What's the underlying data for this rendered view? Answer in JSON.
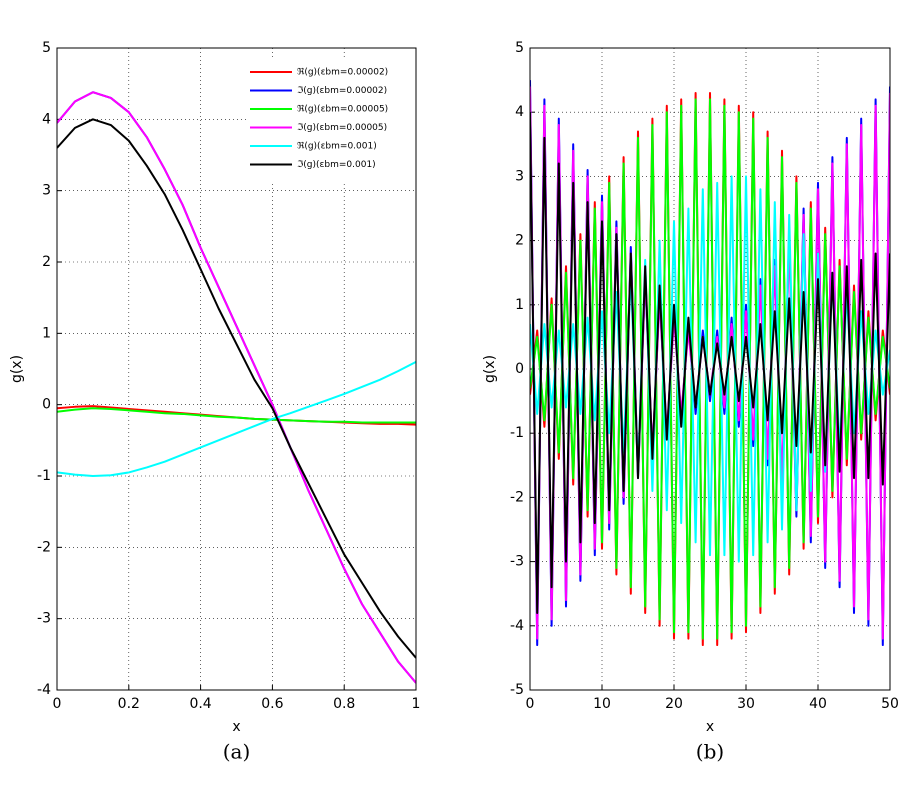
{
  "chart_data": [
    {
      "type": "line",
      "caption": "(a)",
      "x_label": "x",
      "y_label": "g(x)",
      "x": [
        0,
        0.05,
        0.1,
        0.15,
        0.2,
        0.25,
        0.3,
        0.35,
        0.4,
        0.45,
        0.5,
        0.55,
        0.6,
        0.65,
        0.7,
        0.75,
        0.8,
        0.85,
        0.9,
        0.95,
        1
      ],
      "xlim": [
        0,
        1
      ],
      "xticks": [
        0,
        0.2,
        0.4,
        0.6,
        0.8,
        1
      ],
      "ylim": [
        -4,
        5
      ],
      "yticks": [
        -4,
        -3,
        -2,
        -1,
        0,
        1,
        2,
        3,
        4,
        5
      ],
      "grid": true,
      "legend": "upper right",
      "series": [
        {
          "name": "ℜ(g)(εbm=0.00002)",
          "color": "#ff0000",
          "values": [
            -0.05,
            -0.03,
            -0.02,
            -0.04,
            -0.06,
            -0.08,
            -0.1,
            -0.12,
            -0.14,
            -0.16,
            -0.18,
            -0.2,
            -0.21,
            -0.22,
            -0.23,
            -0.24,
            -0.25,
            -0.26,
            -0.27,
            -0.27,
            -0.28
          ]
        },
        {
          "name": "ℑ(g)(εbm=0.00002)",
          "color": "#0000ff",
          "values": [
            3.95,
            4.25,
            4.38,
            4.3,
            4.1,
            3.75,
            3.3,
            2.8,
            2.2,
            1.65,
            1.1,
            0.55,
            0.0,
            -0.6,
            -1.2,
            -1.75,
            -2.3,
            -2.8,
            -3.2,
            -3.6,
            -3.9
          ]
        },
        {
          "name": "ℜ(g)(εbm=0.00005)",
          "color": "#00ff00",
          "values": [
            -0.1,
            -0.07,
            -0.05,
            -0.06,
            -0.08,
            -0.1,
            -0.12,
            -0.13,
            -0.15,
            -0.17,
            -0.18,
            -0.2,
            -0.21,
            -0.22,
            -0.23,
            -0.24,
            -0.24,
            -0.25,
            -0.25,
            -0.25,
            -0.25
          ]
        },
        {
          "name": "ℑ(g)(εbm=0.00005)",
          "color": "#ff00ff",
          "values": [
            3.95,
            4.25,
            4.38,
            4.3,
            4.1,
            3.75,
            3.3,
            2.8,
            2.2,
            1.65,
            1.1,
            0.55,
            0.0,
            -0.6,
            -1.2,
            -1.75,
            -2.3,
            -2.8,
            -3.2,
            -3.6,
            -3.9
          ]
        },
        {
          "name": "ℜ(g)(εbm=0.001)",
          "color": "#00ffff",
          "values": [
            -0.95,
            -0.98,
            -1.0,
            -0.99,
            -0.95,
            -0.88,
            -0.8,
            -0.7,
            -0.6,
            -0.5,
            -0.4,
            -0.3,
            -0.2,
            -0.12,
            -0.03,
            0.06,
            0.15,
            0.25,
            0.35,
            0.47,
            0.6
          ]
        },
        {
          "name": "ℑ(g)(εbm=0.001)",
          "color": "#000000",
          "values": [
            3.6,
            3.88,
            4.0,
            3.92,
            3.7,
            3.35,
            2.95,
            2.45,
            1.9,
            1.35,
            0.85,
            0.35,
            -0.05,
            -0.6,
            -1.1,
            -1.6,
            -2.1,
            -2.5,
            -2.9,
            -3.25,
            -3.55
          ]
        }
      ]
    },
    {
      "type": "line",
      "caption": "(b)",
      "x_label": "x",
      "y_label": "g(x)",
      "x": [
        0,
        1,
        2,
        3,
        4,
        5,
        6,
        7,
        8,
        9,
        10,
        11,
        12,
        13,
        14,
        15,
        16,
        17,
        18,
        19,
        20,
        21,
        22,
        23,
        24,
        25,
        26,
        27,
        28,
        29,
        30,
        31,
        32,
        33,
        34,
        35,
        36,
        37,
        38,
        39,
        40,
        41,
        42,
        43,
        44,
        45,
        46,
        47,
        48,
        49,
        50
      ],
      "xlim": [
        0,
        50
      ],
      "xticks": [
        0,
        10,
        20,
        30,
        40,
        50
      ],
      "ylim": [
        -5,
        5
      ],
      "yticks": [
        -5,
        -4,
        -3,
        -2,
        -1,
        0,
        1,
        2,
        3,
        4,
        5
      ],
      "grid": true,
      "series": [
        {
          "color": "#ff0000",
          "values": [
            -0.4,
            0.6,
            -0.9,
            1.1,
            -1.4,
            1.6,
            -1.8,
            2.1,
            -2.3,
            2.6,
            -2.8,
            3.0,
            -3.2,
            3.3,
            -3.5,
            3.7,
            -3.8,
            3.9,
            -4.0,
            4.1,
            -4.2,
            4.2,
            -4.2,
            4.3,
            -4.3,
            4.3,
            -4.3,
            4.2,
            -4.2,
            4.1,
            -4.1,
            4.0,
            -3.8,
            3.7,
            -3.5,
            3.4,
            -3.2,
            3.0,
            -2.8,
            2.6,
            -2.4,
            2.2,
            -2.0,
            1.7,
            -1.5,
            1.3,
            -1.1,
            0.9,
            -0.8,
            0.6,
            -0.4
          ]
        },
        {
          "color": "#0000ff",
          "values": [
            4.5,
            -4.3,
            4.2,
            -4.0,
            3.9,
            -3.7,
            3.5,
            -3.3,
            3.1,
            -2.9,
            2.7,
            -2.5,
            2.3,
            -2.1,
            1.9,
            -1.7,
            1.5,
            -1.4,
            1.2,
            -1.1,
            0.9,
            -0.8,
            0.7,
            -0.7,
            0.6,
            -0.5,
            0.6,
            -0.7,
            0.8,
            -0.9,
            1.0,
            -1.2,
            1.4,
            -1.5,
            1.7,
            -1.9,
            2.1,
            -2.3,
            2.5,
            -2.7,
            2.9,
            -3.1,
            3.3,
            -3.4,
            3.6,
            -3.8,
            3.9,
            -4.0,
            4.2,
            -4.3,
            4.4
          ]
        },
        {
          "color": "#00ff00",
          "values": [
            -0.3,
            0.5,
            -0.8,
            1.0,
            -1.3,
            1.5,
            -1.7,
            2.0,
            -2.2,
            2.5,
            -2.7,
            2.9,
            -3.1,
            3.2,
            -3.4,
            3.6,
            -3.7,
            3.8,
            -3.9,
            4.0,
            -4.1,
            4.1,
            -4.1,
            4.2,
            -4.2,
            4.2,
            -4.2,
            4.1,
            -4.1,
            4.0,
            -4.0,
            3.9,
            -3.7,
            3.6,
            -3.4,
            3.3,
            -3.1,
            2.9,
            -2.7,
            2.5,
            -2.3,
            2.1,
            -1.9,
            1.6,
            -1.4,
            1.2,
            -1.0,
            0.8,
            -0.7,
            0.5,
            -0.3
          ]
        },
        {
          "color": "#ff00ff",
          "values": [
            4.4,
            -4.2,
            4.1,
            -3.9,
            3.8,
            -3.6,
            3.4,
            -3.2,
            3.0,
            -2.8,
            2.6,
            -2.4,
            2.2,
            -2.0,
            1.8,
            -1.6,
            1.4,
            -1.3,
            1.1,
            -1.0,
            0.8,
            -0.7,
            0.6,
            -0.6,
            0.5,
            -0.4,
            0.5,
            -0.6,
            0.7,
            -0.8,
            0.9,
            -1.1,
            1.3,
            -1.4,
            1.6,
            -1.8,
            2.0,
            -2.2,
            2.4,
            -2.6,
            2.8,
            -3.0,
            3.2,
            -3.3,
            3.5,
            -3.7,
            3.8,
            -3.9,
            4.1,
            -4.2,
            4.3
          ]
        },
        {
          "color": "#00ffff",
          "values": [
            0.7,
            -0.7,
            0.7,
            -0.6,
            0.6,
            -0.6,
            0.7,
            -0.7,
            0.8,
            -0.8,
            0.9,
            -1.0,
            1.2,
            -1.3,
            1.5,
            -1.6,
            1.7,
            -1.9,
            2.0,
            -2.2,
            2.3,
            -2.4,
            2.5,
            -2.7,
            2.8,
            -2.9,
            2.9,
            -2.9,
            3.0,
            -3.0,
            3.0,
            -2.9,
            2.8,
            -2.7,
            2.6,
            -2.5,
            2.4,
            -2.2,
            2.1,
            -1.9,
            1.8,
            -1.6,
            1.5,
            -1.3,
            1.2,
            -1.0,
            0.9,
            -0.7,
            0.6,
            -0.4,
            0.3
          ]
        },
        {
          "color": "#000000",
          "values": [
            4.0,
            -3.8,
            3.6,
            -3.4,
            3.2,
            -3.0,
            2.9,
            -2.7,
            2.6,
            -2.4,
            2.3,
            -2.2,
            2.1,
            -1.9,
            1.8,
            -1.7,
            1.6,
            -1.4,
            1.3,
            -1.1,
            1.0,
            -0.9,
            0.8,
            -0.6,
            0.5,
            -0.4,
            0.4,
            -0.4,
            0.5,
            -0.5,
            0.5,
            -0.6,
            0.7,
            -0.8,
            0.9,
            -1.0,
            1.1,
            -1.2,
            1.2,
            -1.3,
            1.4,
            -1.5,
            1.5,
            -1.6,
            1.6,
            -1.7,
            1.7,
            -1.7,
            1.8,
            -1.8,
            1.8
          ]
        }
      ]
    }
  ]
}
